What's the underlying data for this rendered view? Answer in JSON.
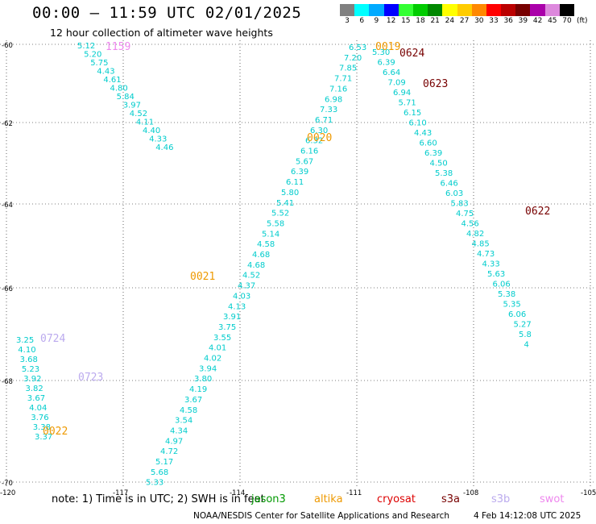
{
  "header": {
    "title": "00:00 — 11:59 UTC 02/01/2025",
    "subtitle": "12 hour collection of altimeter wave heights"
  },
  "legend": {
    "unit": "(ft)",
    "bins": [
      {
        "label": "3",
        "color": "#808080"
      },
      {
        "label": "6",
        "color": "#00ffff"
      },
      {
        "label": "9",
        "color": "#00aaff"
      },
      {
        "label": "12",
        "color": "#0000ff"
      },
      {
        "label": "15",
        "color": "#33ff33"
      },
      {
        "label": "18",
        "color": "#00cc00"
      },
      {
        "label": "21",
        "color": "#008800"
      },
      {
        "label": "24",
        "color": "#ffff00"
      },
      {
        "label": "27",
        "color": "#ffcc00"
      },
      {
        "label": "30",
        "color": "#ff8800"
      },
      {
        "label": "33",
        "color": "#ff0000"
      },
      {
        "label": "36",
        "color": "#bb0000"
      },
      {
        "label": "39",
        "color": "#770000"
      },
      {
        "label": "42",
        "color": "#aa00aa"
      },
      {
        "label": "45",
        "color": "#dd88dd"
      },
      {
        "label": "70",
        "color": "#000000"
      }
    ]
  },
  "map": {
    "lon_ticks": [
      "-120",
      "-117",
      "-114",
      "-111",
      "-108",
      "-105"
    ],
    "lat_ticks": [
      "-60",
      "-62",
      "-64",
      "-66",
      "-68",
      "-70"
    ],
    "tracks": [
      {
        "color": "#00cccc",
        "points": [
          [
            "5.12",
            60,
            1
          ],
          [
            "5.20",
            63,
            2
          ],
          [
            "5.75",
            64,
            3
          ],
          [
            "4.43",
            64,
            4
          ],
          [
            "4.61",
            64,
            5
          ],
          [
            "4.80",
            66,
            6
          ],
          [
            "5.84",
            67,
            7
          ],
          [
            "3.97",
            68,
            8
          ],
          [
            "4.52",
            69,
            9
          ],
          [
            "4.11",
            70,
            10
          ],
          [
            "4.40",
            71,
            11
          ],
          [
            "4.33",
            72,
            12
          ],
          [
            "4.46",
            73,
            13
          ]
        ]
      },
      {
        "color": "#00cccc",
        "points": [
          [
            "6.53",
            98,
            1
          ],
          [
            "7.20",
            99,
            2
          ],
          [
            "7.85",
            100,
            3
          ],
          [
            "7.71",
            101,
            4
          ],
          [
            "7.16",
            102,
            5
          ],
          [
            "6.98",
            103,
            6
          ],
          [
            "7.33",
            104,
            7
          ],
          [
            "6.71",
            105,
            8
          ],
          [
            "6.30",
            106,
            9
          ],
          [
            "6.32",
            107,
            10
          ],
          [
            "6.16",
            108,
            11
          ],
          [
            "5.67",
            109,
            12
          ],
          [
            "6.39",
            110,
            13
          ],
          [
            "6.11",
            111,
            14
          ],
          [
            "5.80",
            112,
            15
          ],
          [
            "5.41",
            113,
            16
          ],
          [
            "5.52",
            114,
            17
          ],
          [
            "5.58",
            115,
            18
          ],
          [
            "5.14",
            116,
            19
          ],
          [
            "4.58",
            117,
            20
          ],
          [
            "4.68",
            118,
            21
          ],
          [
            "4.68",
            119,
            22
          ],
          [
            "4.52",
            120,
            23
          ],
          [
            "4.37",
            121,
            24
          ],
          [
            "4.03",
            122,
            25
          ],
          [
            "4.13",
            123,
            26
          ],
          [
            "3.91",
            124,
            27
          ],
          [
            "3.75",
            125,
            28
          ],
          [
            "3.55",
            126,
            29
          ],
          [
            "4.01",
            127,
            30
          ],
          [
            "4.02",
            128,
            31
          ],
          [
            "3.94",
            129,
            32
          ],
          [
            "3.80",
            130,
            33
          ],
          [
            "4.19",
            131,
            34
          ],
          [
            "3.67",
            132,
            35
          ],
          [
            "4.58",
            133,
            36
          ],
          [
            "3.54",
            134,
            37
          ],
          [
            "4.34",
            135,
            38
          ],
          [
            "4.97",
            136,
            39
          ],
          [
            "4.72",
            137,
            40
          ],
          [
            "5.17",
            138,
            41
          ],
          [
            "5.68",
            139,
            42
          ],
          [
            "5.33",
            140,
            43
          ]
        ]
      },
      {
        "color": "#00cccc",
        "points": [
          [
            "5.30",
            101,
            1
          ],
          [
            "6.39",
            102,
            2
          ],
          [
            "6.64",
            103,
            3
          ],
          [
            "7.09",
            104,
            4
          ],
          [
            "6.94",
            105,
            5
          ],
          [
            "5.71",
            106,
            6
          ],
          [
            "6.15",
            107,
            7
          ],
          [
            "6.10",
            108,
            8
          ],
          [
            "4.43",
            109,
            9
          ],
          [
            "6.60",
            110,
            10
          ],
          [
            "6.39",
            111,
            11
          ],
          [
            "4.50",
            112,
            12
          ],
          [
            "5.38",
            113,
            13
          ],
          [
            "6.46",
            114,
            14
          ],
          [
            "6.03",
            115,
            15
          ],
          [
            "5.83",
            116,
            16
          ],
          [
            "4.75",
            117,
            17
          ],
          [
            "4.56",
            118,
            18
          ],
          [
            "4.82",
            119,
            19
          ],
          [
            "4.85",
            120,
            20
          ],
          [
            "4.73",
            121,
            21
          ],
          [
            "4.33",
            122,
            22
          ],
          [
            "5.63",
            123,
            23
          ],
          [
            "6.06",
            124,
            24
          ],
          [
            "5.38",
            125,
            25
          ],
          [
            "5.35",
            126,
            26
          ],
          [
            "6.06",
            127,
            27
          ],
          [
            "5.27",
            128,
            28
          ],
          [
            "5.8",
            129,
            29
          ],
          [
            "4",
            130,
            30
          ]
        ]
      },
      {
        "color": "#00cccc",
        "points": [
          [
            "3.25",
            20,
            1
          ],
          [
            "4.10",
            21,
            2
          ],
          [
            "3.68",
            22,
            3
          ],
          [
            "5.23",
            23,
            4
          ],
          [
            "3.92",
            24,
            5
          ],
          [
            "3.82",
            25,
            6
          ],
          [
            "3.67",
            26,
            7
          ],
          [
            "4.04",
            27,
            8
          ],
          [
            "3.76",
            28,
            9
          ],
          [
            "3.38",
            29,
            10
          ],
          [
            "3.37",
            30,
            11
          ]
        ]
      }
    ],
    "satellite_labels": [
      {
        "text": "1159",
        "color": "#ee88ee"
      },
      {
        "text": "0019",
        "color": "#ee9900"
      },
      {
        "text": "0624",
        "color": "#770000"
      },
      {
        "text": "0623",
        "color": "#770000"
      },
      {
        "text": "0020",
        "color": "#ee9900"
      },
      {
        "text": "0622",
        "color": "#770000"
      },
      {
        "text": "0021",
        "color": "#ee9900"
      },
      {
        "text": "0724",
        "color": "#bbaaee"
      },
      {
        "text": "0723",
        "color": "#bbaaee"
      },
      {
        "text": "0022",
        "color": "#ee9900"
      }
    ]
  },
  "note": {
    "text": "note: 1) Time is in UTC; 2) SWH is in feet",
    "satellites": [
      {
        "name": "jason3",
        "color": "#009900"
      },
      {
        "name": "altika",
        "color": "#ee9900"
      },
      {
        "name": "cryosat",
        "color": "#dd0000"
      },
      {
        "name": "s3a",
        "color": "#770000"
      },
      {
        "name": "s3b",
        "color": "#bbaaee"
      },
      {
        "name": "swot",
        "color": "#ee88ee"
      }
    ]
  },
  "footer": {
    "credit": "NOAA/NESDIS Center for Satellite Applications and Research",
    "timestamp": "4 Feb 14:12:08 UTC 2025"
  }
}
